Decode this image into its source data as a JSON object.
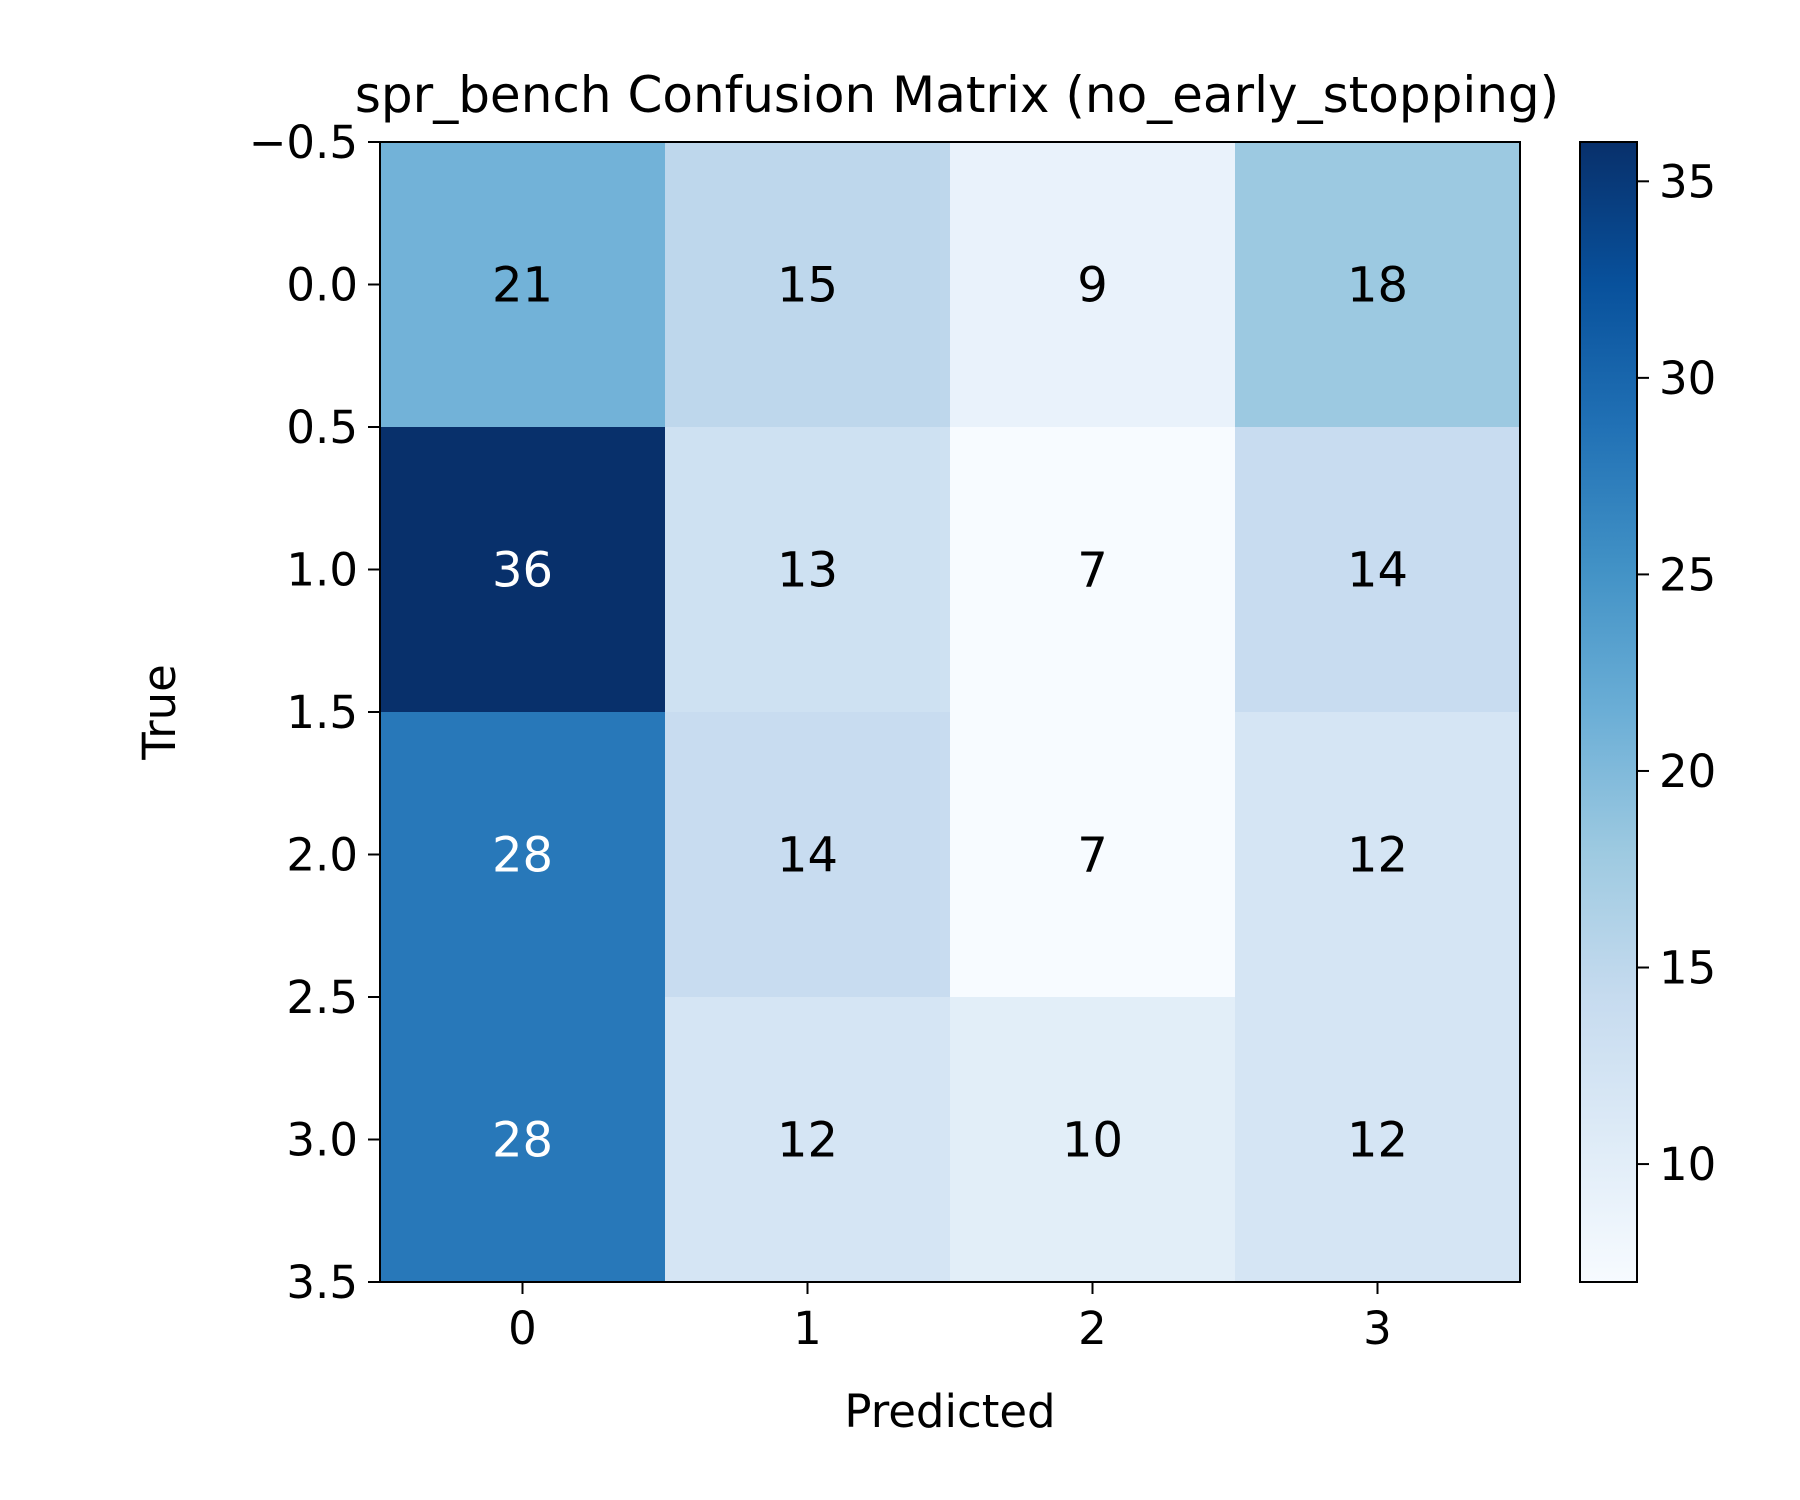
{
  "chart_data": {
    "type": "heatmap",
    "title": "spr_bench Confusion Matrix (no_early_stopping)",
    "xlabel": "Predicted",
    "ylabel": "True",
    "x_ticks": [
      "0",
      "1",
      "2",
      "3"
    ],
    "y_ticks": [
      "−0.5",
      "0.0",
      "0.5",
      "1.0",
      "1.5",
      "2.0",
      "2.5",
      "3.0",
      "3.5"
    ],
    "ylim": [
      -0.5,
      3.5
    ],
    "matrix": [
      [
        21,
        15,
        9,
        18
      ],
      [
        36,
        13,
        7,
        14
      ],
      [
        28,
        14,
        7,
        12
      ],
      [
        28,
        12,
        10,
        12
      ]
    ],
    "colormap": "Blues",
    "colorbar": {
      "min": 7,
      "max": 36,
      "ticks": [
        "10",
        "15",
        "20",
        "25",
        "30",
        "35"
      ]
    },
    "grid": false
  }
}
